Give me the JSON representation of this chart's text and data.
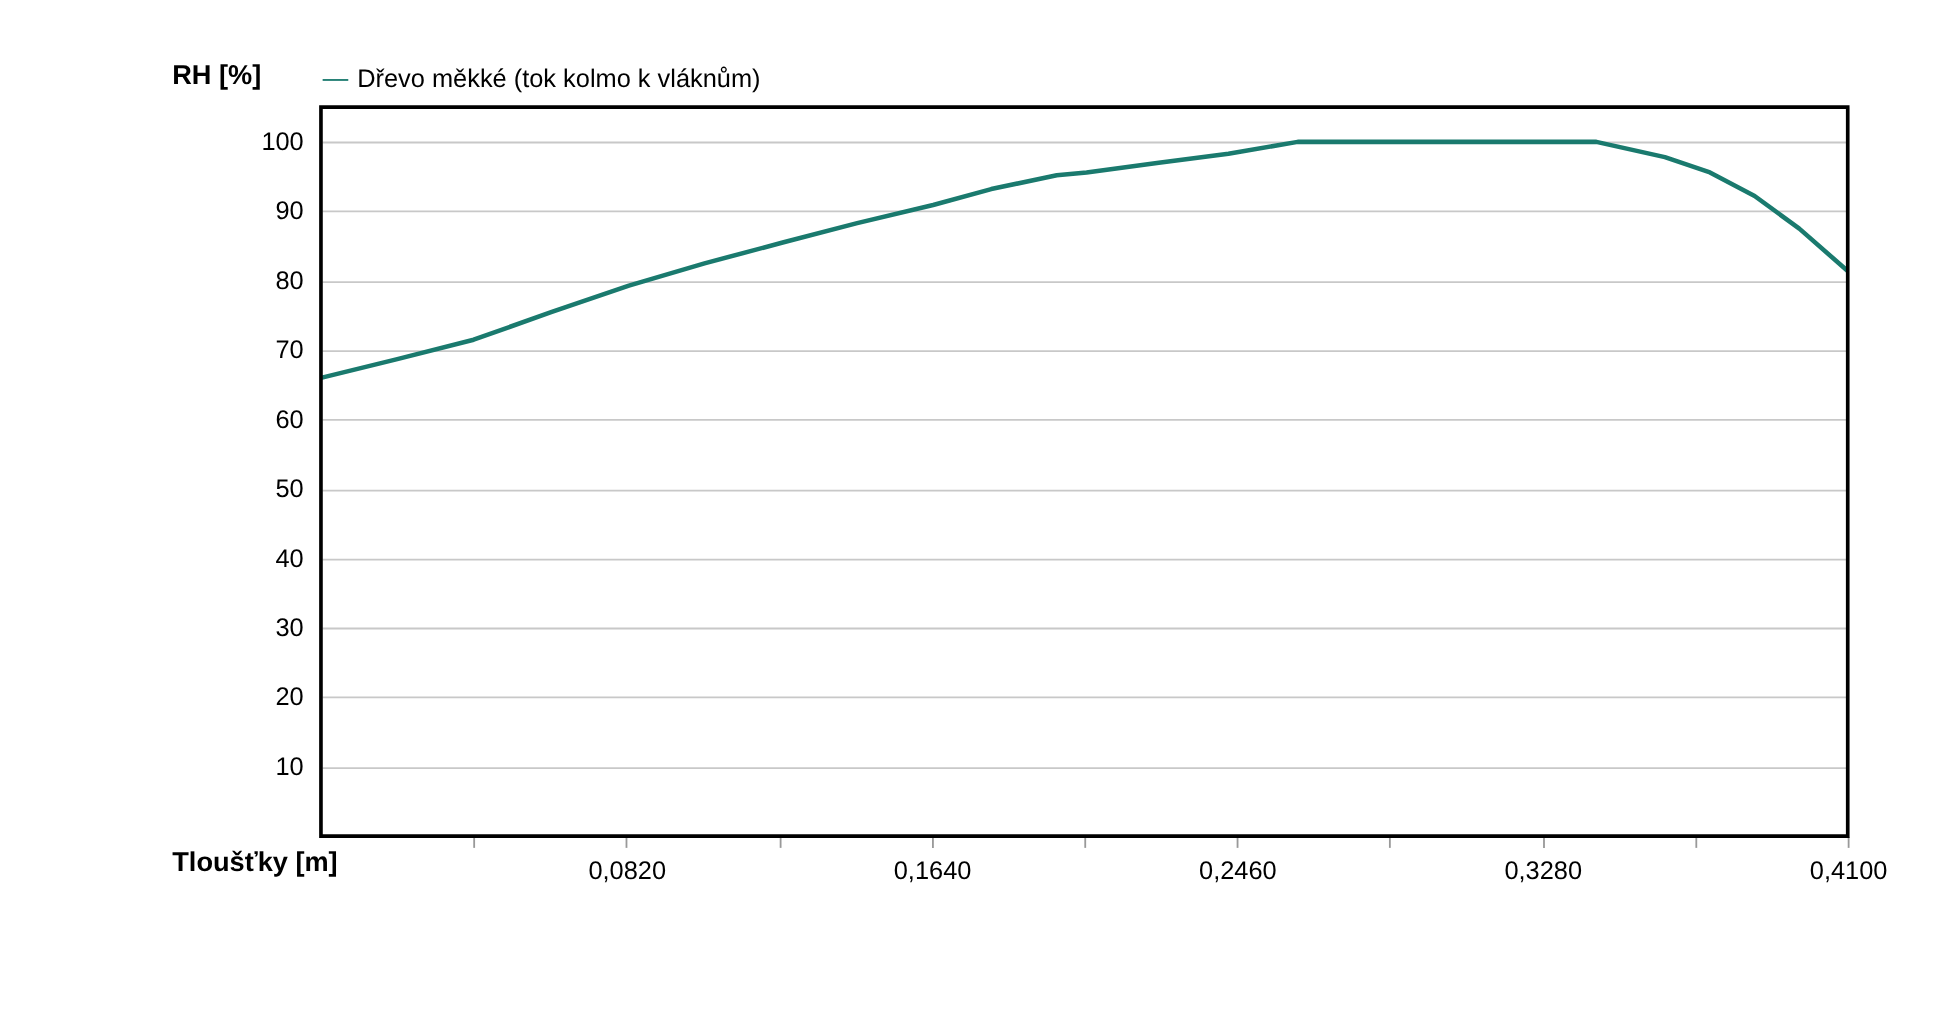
{
  "chart_data": {
    "type": "line",
    "xlabel": "Tloušťky [m]",
    "ylabel": "RH [%]",
    "x": [
      0,
      0.0205,
      0.041,
      0.062,
      0.0827,
      0.103,
      0.124,
      0.144,
      0.1644,
      0.18,
      0.1976,
      0.2056,
      0.225,
      0.2437,
      0.2623,
      0.3,
      0.3425,
      0.3609,
      0.373,
      0.385,
      0.397,
      0.41
    ],
    "series": [
      {
        "name": "Dřevo měkké (tok kolmo k vláknům)",
        "color": "#1a7a6e",
        "values": [
          66,
          68.7,
          71.5,
          75.5,
          79.3,
          82.5,
          85.5,
          88.3,
          90.9,
          93.2,
          95.2,
          95.6,
          97,
          98.3,
          100,
          100,
          100,
          97.8,
          95.6,
          92.2,
          87.5,
          81.4
        ]
      }
    ],
    "xlim": [
      0,
      0.41
    ],
    "ylim": [
      0,
      105
    ],
    "xticks": [
      {
        "value": 0.041,
        "label": null
      },
      {
        "value": 0.082,
        "label": "0,0820"
      },
      {
        "value": 0.123,
        "label": null
      },
      {
        "value": 0.164,
        "label": "0,1640"
      },
      {
        "value": 0.205,
        "label": null
      },
      {
        "value": 0.246,
        "label": "0,2460"
      },
      {
        "value": 0.287,
        "label": null
      },
      {
        "value": 0.328,
        "label": "0,3280"
      },
      {
        "value": 0.369,
        "label": null
      },
      {
        "value": 0.41,
        "label": "0,4100"
      }
    ],
    "yticks": [
      10,
      20,
      30,
      40,
      50,
      60,
      70,
      80,
      90,
      100
    ],
    "grid": "y",
    "legend": "top",
    "marker": "none",
    "line_style": "solid"
  }
}
